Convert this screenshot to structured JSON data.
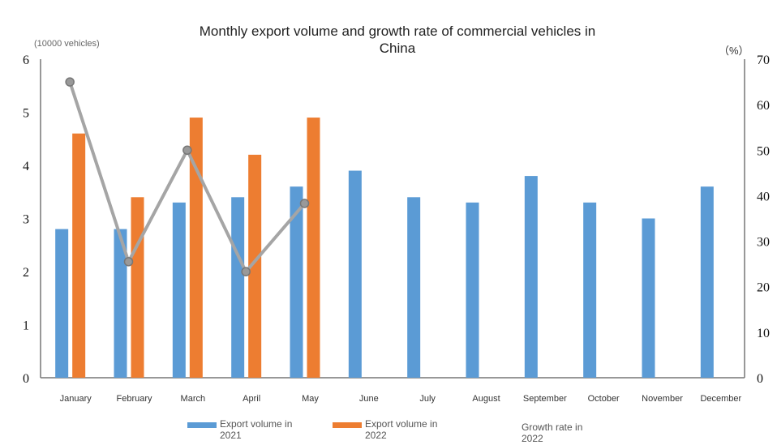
{
  "chart_data": {
    "type": "bar",
    "title": "Monthly export volume and growth rate of commercial vehicles in China",
    "ylabel_left": "(10000 vehicles)",
    "ylabel_right": "（%）",
    "ylim_left": [
      0,
      6
    ],
    "ylim_right": [
      0,
      70
    ],
    "yticks_left": [
      0,
      1,
      2,
      3,
      4,
      5,
      6
    ],
    "yticks_right": [
      0,
      10,
      20,
      30,
      40,
      50,
      60,
      70
    ],
    "grid": false,
    "legend_position": "bottom",
    "categories": [
      "January",
      "February",
      "March",
      "April",
      "May",
      "June",
      "July",
      "August",
      "September",
      "October",
      "November",
      "December"
    ],
    "series": [
      {
        "name": "Export volume in 2021",
        "type": "bar",
        "axis": "left",
        "color": "#5b9bd5",
        "values": [
          2.8,
          2.8,
          3.3,
          3.4,
          3.6,
          3.9,
          3.4,
          3.3,
          3.8,
          3.3,
          3.0,
          3.6
        ]
      },
      {
        "name": "Export volume in 2022",
        "type": "bar",
        "axis": "left",
        "color": "#ed7d31",
        "values": [
          4.6,
          3.4,
          4.9,
          4.2,
          4.9,
          null,
          null,
          null,
          null,
          null,
          null,
          null
        ]
      },
      {
        "name": "Growth rate in 2022",
        "type": "line",
        "axis": "right",
        "color": "#a5a5a5",
        "values": [
          65,
          25.5,
          50,
          23.3,
          38.3,
          null,
          null,
          null,
          null,
          null,
          null,
          null
        ]
      }
    ]
  }
}
